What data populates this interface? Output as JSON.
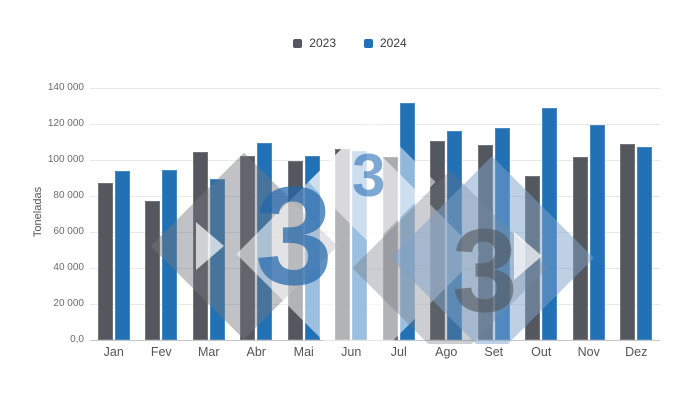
{
  "legend": {
    "items": [
      {
        "label": "2023",
        "color": "#54585E"
      },
      {
        "label": "2024",
        "color": "#2271B5"
      }
    ]
  },
  "y_axis": {
    "title": "Toneladas",
    "tick_labels": [
      "140 000",
      "120 000",
      "100 000",
      "80 000",
      "60 000",
      "40 000",
      "20 000",
      "0,0"
    ]
  },
  "x_axis": {
    "categories": [
      "Jan",
      "Fev",
      "Mar",
      "Abr",
      "Mai",
      "Jun",
      "Jul",
      "Ago",
      "Set",
      "Out",
      "Nov",
      "Dez"
    ]
  },
  "chart_data": {
    "type": "bar",
    "title": "",
    "categories": [
      "Jan",
      "Fev",
      "Mar",
      "Abr",
      "Mai",
      "Jun",
      "Jul",
      "Ago",
      "Set",
      "Out",
      "Nov",
      "Dez"
    ],
    "series": [
      {
        "name": "2023",
        "color": "#54585E",
        "values": [
          87000,
          77000,
          104700,
          102400,
          99500,
          106100,
          101800,
          110700,
          108300,
          91100,
          101800,
          108900
        ]
      },
      {
        "name": "2024",
        "color": "#2271B5",
        "values": [
          94000,
          94300,
          89400,
          109300,
          102200,
          105200,
          131800,
          116300,
          117600,
          128700,
          119400,
          107100
        ]
      }
    ],
    "xlabel": "",
    "ylabel": "Toneladas",
    "ylim": [
      0,
      140000
    ],
    "grid": true,
    "legend_position": "top"
  },
  "watermark": {
    "glyph": "3"
  },
  "colors": {
    "background": "#ffffff",
    "gridline": "#e9e9e9",
    "axis_line": "#c7c7c7",
    "series_2023": "#54585E",
    "series_2024": "#2271B5"
  }
}
